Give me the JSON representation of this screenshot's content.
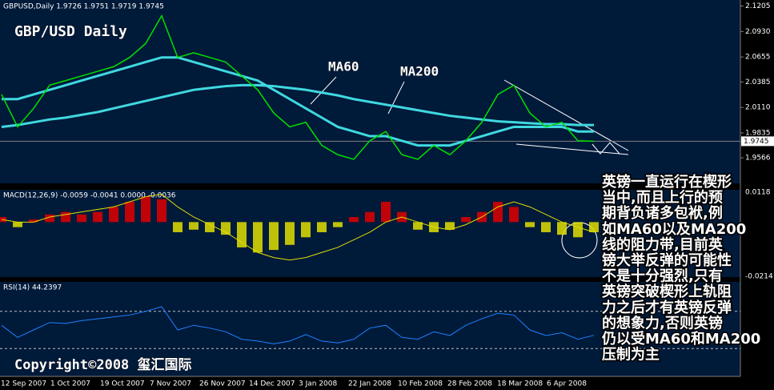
{
  "date_axis": [
    "12 Sep 2007",
    "1 Oct 2007",
    "19 Oct 2007",
    "7 Nov 2007",
    "26 Nov 2007",
    "14 Dec 2007",
    "3 Jan 2008",
    "22 Jan 2008",
    "10 Feb 2008",
    "28 Feb 2008",
    "18 Mar 2008",
    "6 Apr 2008"
  ],
  "copyright": "Copyright©2008 玺汇国际",
  "commentary": [
    "英镑一直运行在楔形",
    "当中,而且上行的预",
    "期背负诸多包袱,例",
    "如MA60以及MA200",
    "线的阻力带,目前英",
    "镑大举反弹的可能性",
    "不是十分强烈,只有",
    "英镑突破楔形上轨阻",
    "力之后才有英镑反弹",
    "的想象力,否则英镑",
    "仍以受MA60和MA200",
    "压制为主"
  ],
  "chart_data": [
    {
      "type": "line",
      "title": "GBP/USD Daily",
      "label": "GBPUSD,Daily 1.9726 1.9751 1.9719 1.9745",
      "color": "#00e000",
      "values": [
        2.025,
        1.99,
        2.01,
        2.035,
        2.04,
        2.045,
        2.05,
        2.055,
        2.065,
        2.08,
        2.11,
        2.065,
        2.07,
        2.065,
        2.06,
        2.045,
        2.03,
        2.005,
        1.99,
        1.995,
        1.97,
        1.96,
        1.955,
        1.975,
        1.985,
        1.96,
        1.955,
        1.97,
        1.96,
        1.975,
        1.995,
        2.025,
        2.035,
        2.005,
        1.99,
        1.995,
        1.975,
        1.9745
      ],
      "series": [
        {
          "name": "MA60",
          "color": "#40d8e0",
          "values": [
            2.02,
            2.02,
            2.025,
            2.03,
            2.035,
            2.04,
            2.045,
            2.05,
            2.055,
            2.06,
            2.065,
            2.065,
            2.06,
            2.055,
            2.05,
            2.045,
            2.04,
            2.03,
            2.02,
            2.01,
            2.0,
            1.99,
            1.985,
            1.98,
            1.98,
            1.975,
            1.97,
            1.97,
            1.97,
            1.975,
            1.98,
            1.985,
            1.99,
            1.99,
            1.99,
            1.99,
            1.985,
            1.985
          ]
        },
        {
          "name": "MA200",
          "color": "#40d8e0",
          "values": [
            1.99,
            1.992,
            1.995,
            1.998,
            2.0,
            2.003,
            2.006,
            2.01,
            2.014,
            2.018,
            2.022,
            2.026,
            2.03,
            2.032,
            2.034,
            2.035,
            2.035,
            2.034,
            2.032,
            2.03,
            2.027,
            2.024,
            2.02,
            2.017,
            2.014,
            2.011,
            2.008,
            2.005,
            2.002,
            2.0,
            1.998,
            1.996,
            1.995,
            1.994,
            1.993,
            1.993,
            1.992,
            1.992
          ]
        }
      ],
      "last_price": 1.9745,
      "ylim": [
        1.929,
        2.127
      ],
      "yticks": [
        1.9566,
        1.9835,
        {
          "value": 2.011,
          "label": "2.0110"
        },
        2.0385,
        2.0655,
        {
          "value": 2.093,
          "label": "2.0930"
        },
        2.1205
      ]
    },
    {
      "type": "bar",
      "label": "MACD(12,26,9) -0.0059 -0.0041 0.0000 -0.0036",
      "positive_color": "#e00000",
      "negative_color": "#e0e000",
      "values": [
        0.002,
        -0.002,
        0.001,
        0.003,
        0.004,
        0.003,
        0.004,
        0.006,
        0.008,
        0.01,
        0.009,
        -0.004,
        -0.003,
        -0.004,
        -0.005,
        -0.01,
        -0.012,
        -0.011,
        -0.009,
        -0.006,
        -0.004,
        -0.002,
        0.002,
        0.004,
        0.008,
        0.004,
        -0.003,
        -0.004,
        -0.003,
        0.002,
        0.004,
        0.008,
        0.006,
        -0.002,
        -0.004,
        -0.005,
        -0.006,
        -0.004
      ],
      "line": {
        "color": "#e0e000",
        "values": [
          0.001,
          0.0,
          0.0,
          0.002,
          0.003,
          0.004,
          0.005,
          0.006,
          0.008,
          0.01,
          0.011,
          0.006,
          0.002,
          -0.001,
          -0.004,
          -0.008,
          -0.012,
          -0.014,
          -0.015,
          -0.014,
          -0.012,
          -0.01,
          -0.007,
          -0.004,
          0.0,
          0.002,
          0.0,
          -0.002,
          -0.003,
          -0.001,
          0.002,
          0.006,
          0.008,
          0.006,
          0.003,
          0.0,
          -0.002,
          -0.004
        ]
      },
      "ylim": [
        -0.0214,
        0.0118
      ],
      "yticks": [
        -0.0214,
        0.0118
      ]
    },
    {
      "type": "line",
      "label": "RSI(14) 44.2397",
      "color": "#2080ff",
      "values": [
        55,
        42,
        50,
        58,
        57,
        60,
        62,
        64,
        66,
        70,
        75,
        50,
        55,
        52,
        48,
        40,
        38,
        35,
        38,
        45,
        38,
        36,
        40,
        52,
        55,
        42,
        40,
        48,
        44,
        55,
        62,
        68,
        66,
        50,
        44,
        47,
        40,
        44.2397
      ],
      "levels": [
        70,
        30
      ],
      "ylim": [
        0,
        100
      ]
    }
  ]
}
